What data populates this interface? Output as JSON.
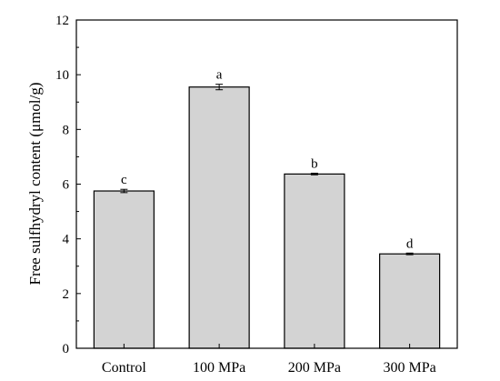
{
  "chart_data": {
    "type": "bar",
    "title": "",
    "xlabel": "",
    "ylabel": "Free sulfhydryl content (μmol/g)",
    "categories": [
      "Control",
      "100 MPa",
      "200 MPa",
      "300 MPa"
    ],
    "values": [
      5.75,
      9.55,
      6.37,
      3.45
    ],
    "errors": [
      0.06,
      0.1,
      0.03,
      0.03
    ],
    "significance_labels": [
      "c",
      "a",
      "b",
      "d"
    ],
    "ylim": [
      0,
      12
    ],
    "yticks": [
      0,
      2,
      4,
      6,
      8,
      10,
      12
    ],
    "grid": false,
    "bar_color": "#d3d3d3",
    "bar_edge_color": "#000000"
  }
}
